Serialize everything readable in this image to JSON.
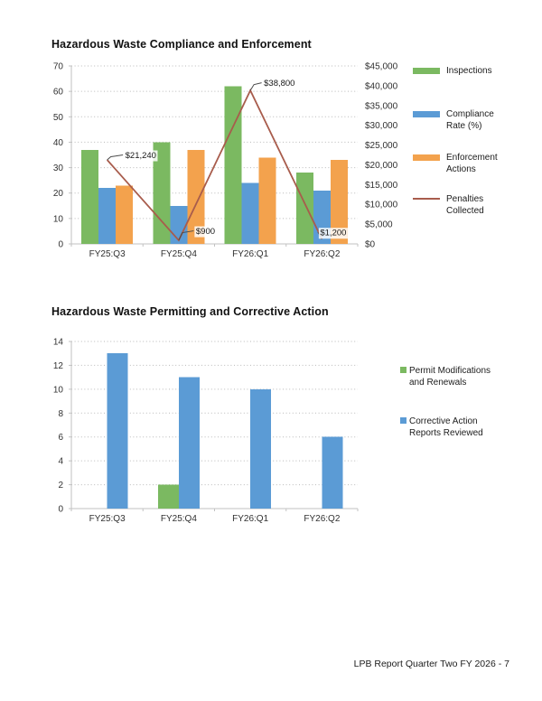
{
  "page": {
    "footer": "LPB Report Quarter Two FY 2026 - 7"
  },
  "chart_data": [
    {
      "type": "bar+line",
      "title": "Hazardous Waste Compliance and Enforcement",
      "categories": [
        "FY25:Q3",
        "FY25:Q4",
        "FY26:Q1",
        "FY26:Q2"
      ],
      "series": [
        {
          "name": "Inspections",
          "type": "bar",
          "axis": "left",
          "color": "#7BB961",
          "values": [
            37,
            40,
            62,
            28
          ]
        },
        {
          "name": "Compliance\nRate (%)",
          "type": "bar",
          "axis": "left",
          "color": "#5B9BD5",
          "values": [
            22,
            15,
            24,
            21
          ]
        },
        {
          "name": "Enforcement\nActions",
          "type": "bar",
          "axis": "left",
          "color": "#F3A24D",
          "values": [
            23,
            37,
            34,
            33
          ]
        },
        {
          "name": "Penalties\nCollected",
          "type": "line",
          "axis": "right",
          "color": "#A85C4C",
          "values": [
            21240,
            900,
            38800,
            1200
          ],
          "point_labels": [
            "$21,240",
            "$900",
            "$38,800",
            "$1,200"
          ],
          "label_offsets": [
            [
              16,
              -2
            ],
            [
              15,
              -7
            ],
            [
              11,
              -5
            ],
            [
              -2,
              -4
            ]
          ]
        }
      ],
      "left_axis": {
        "min": 0,
        "max": 70,
        "step": 10
      },
      "right_axis": {
        "min": 0,
        "max": 45000,
        "step": 5000,
        "format": "$"
      },
      "grid": "dotted horizontal, aligned to left axis",
      "legend_position": "right"
    },
    {
      "type": "bar",
      "title": "Hazardous Waste Permitting and Corrective Action",
      "categories": [
        "FY25:Q3",
        "FY25:Q4",
        "FY26:Q1",
        "FY26:Q2"
      ],
      "series": [
        {
          "name": "Permit Modifications\nand Renewals",
          "type": "bar",
          "axis": "left",
          "color": "#7BB961",
          "values": [
            0,
            2,
            0,
            0
          ]
        },
        {
          "name": "Corrective Action\nReports Reviewed",
          "type": "bar",
          "axis": "left",
          "color": "#5B9BD5",
          "values": [
            13,
            11,
            10,
            6
          ]
        }
      ],
      "left_axis": {
        "min": 0,
        "max": 14,
        "step": 2
      },
      "grid": "dotted horizontal",
      "legend_position": "right"
    }
  ]
}
